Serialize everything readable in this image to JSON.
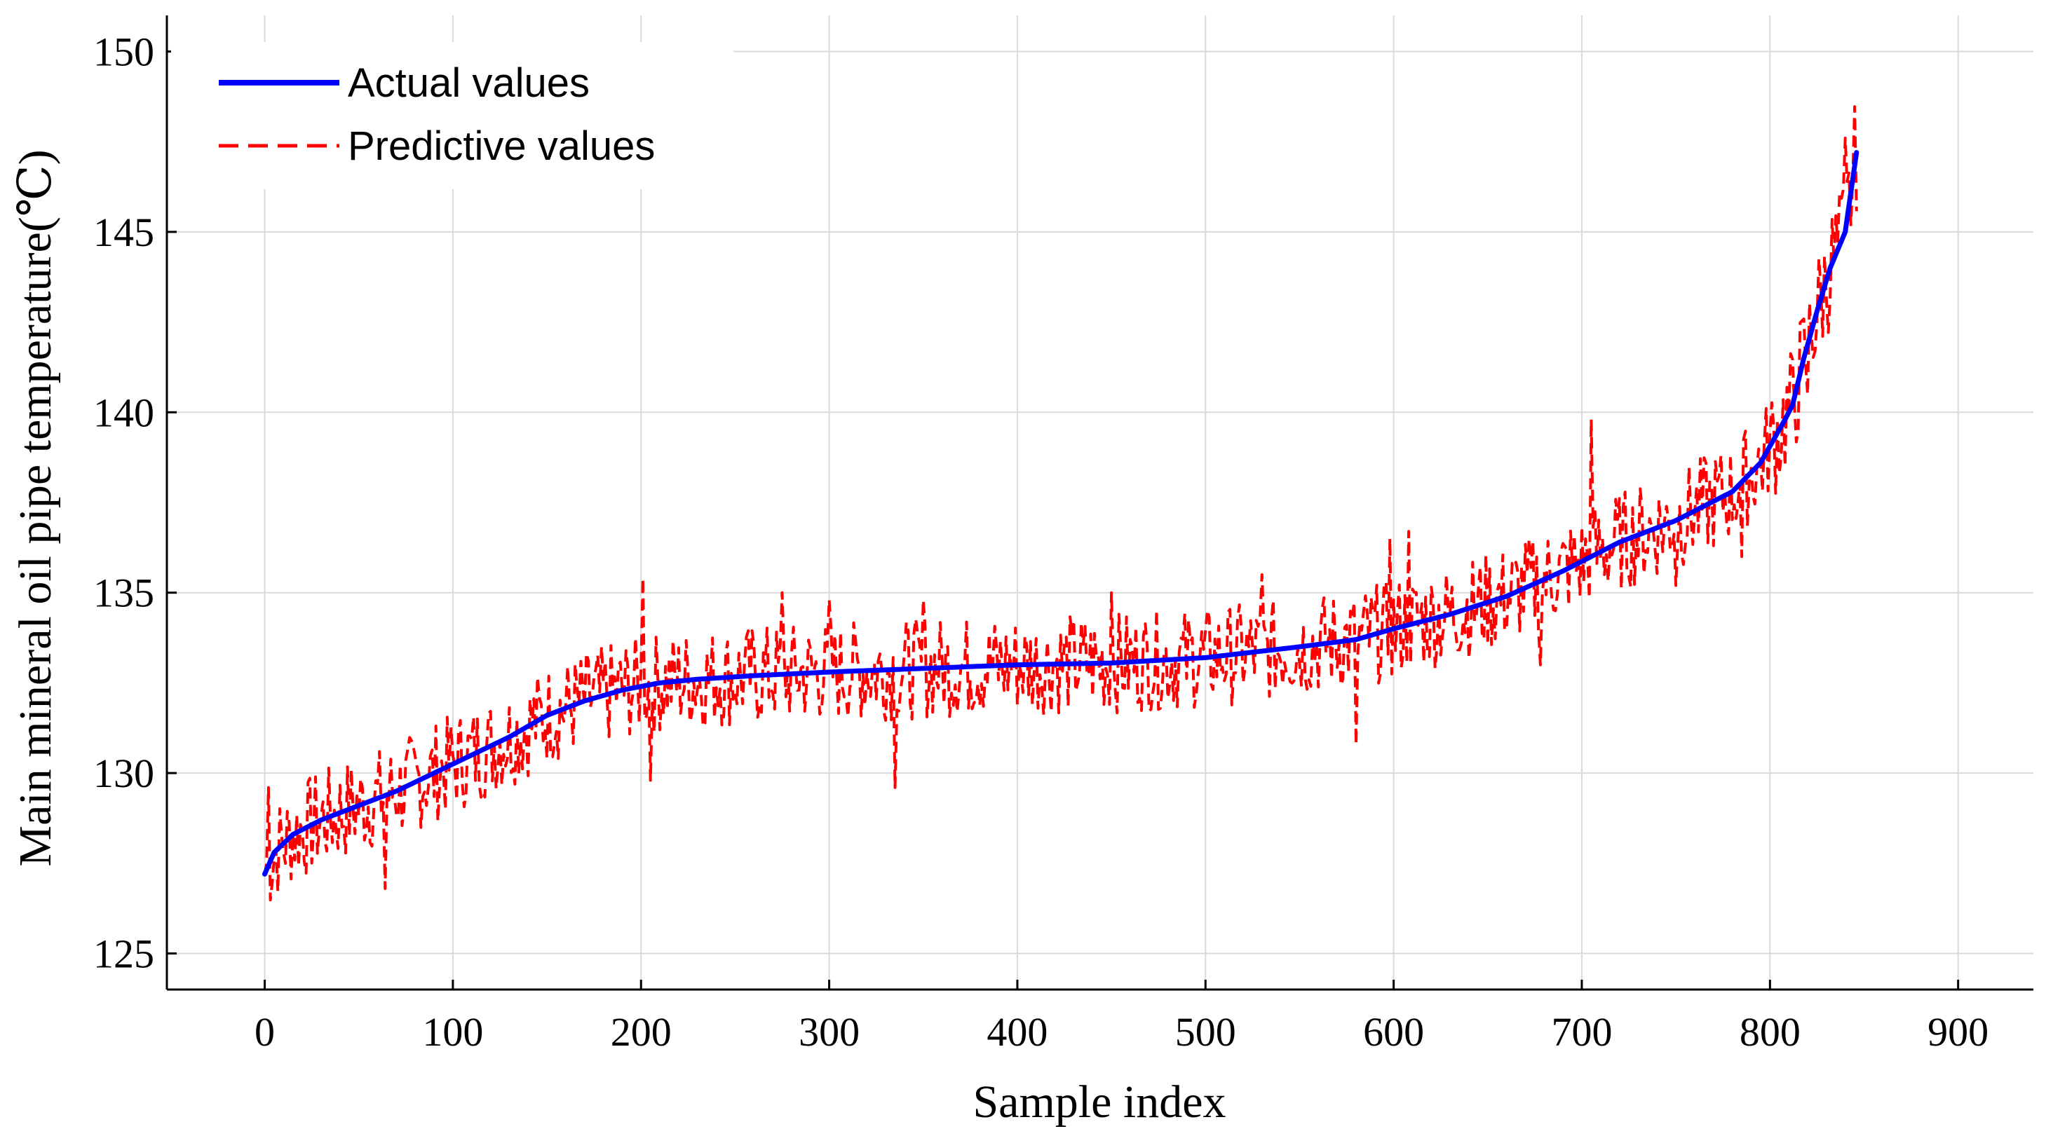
{
  "chart_data": {
    "type": "line",
    "xlabel": "Sample index",
    "ylabel": "Main mineral oil pipe temperature(℃)",
    "xlim": [
      -52,
      940
    ],
    "ylim": [
      124,
      151
    ],
    "xticks": [
      0,
      100,
      200,
      300,
      400,
      500,
      600,
      700,
      800,
      900
    ],
    "yticks": [
      125,
      130,
      135,
      140,
      145,
      150
    ],
    "grid": true,
    "legend_position": "top-left",
    "n_samples": 847,
    "series": [
      {
        "name": "Actual values",
        "style": "solid",
        "color": "#0000ff",
        "sorted_ascending": true,
        "points": [
          [
            0,
            127.2
          ],
          [
            5,
            127.8
          ],
          [
            15,
            128.3
          ],
          [
            30,
            128.7
          ],
          [
            50,
            129.1
          ],
          [
            70,
            129.5
          ],
          [
            90,
            130.0
          ],
          [
            110,
            130.5
          ],
          [
            130,
            131.0
          ],
          [
            150,
            131.6
          ],
          [
            170,
            132.0
          ],
          [
            190,
            132.3
          ],
          [
            210,
            132.5
          ],
          [
            230,
            132.6
          ],
          [
            260,
            132.7
          ],
          [
            300,
            132.8
          ],
          [
            350,
            132.9
          ],
          [
            400,
            133.0
          ],
          [
            450,
            133.05
          ],
          [
            500,
            133.2
          ],
          [
            550,
            133.5
          ],
          [
            580,
            133.7
          ],
          [
            600,
            134.0
          ],
          [
            630,
            134.4
          ],
          [
            660,
            134.9
          ],
          [
            690,
            135.6
          ],
          [
            720,
            136.4
          ],
          [
            750,
            137.0
          ],
          [
            780,
            137.8
          ],
          [
            795,
            138.6
          ],
          [
            808,
            139.8
          ],
          [
            812,
            140.2
          ],
          [
            818,
            141.5
          ],
          [
            825,
            142.8
          ],
          [
            832,
            144.0
          ],
          [
            840,
            145.0
          ],
          [
            846,
            147.2
          ]
        ]
      },
      {
        "name": "Predictive values",
        "style": "dashed",
        "color": "#ff0000",
        "noise_amplitude": 1.4,
        "noise_seed": 7,
        "outliers": [
          [
            2,
            129.6
          ],
          [
            64,
            126.8
          ],
          [
            201,
            135.4
          ],
          [
            205,
            129.8
          ],
          [
            275,
            135.0
          ],
          [
            300,
            134.8
          ],
          [
            335,
            129.6
          ],
          [
            350,
            134.8
          ],
          [
            450,
            135.0
          ],
          [
            530,
            135.5
          ],
          [
            580,
            130.8
          ],
          [
            598,
            136.5
          ],
          [
            608,
            136.7
          ],
          [
            678,
            133.0
          ],
          [
            705,
            139.8
          ],
          [
            750,
            135.2
          ],
          [
            785,
            136.0
          ],
          [
            820,
            140.5
          ],
          [
            840,
            147.6
          ]
        ]
      }
    ]
  }
}
